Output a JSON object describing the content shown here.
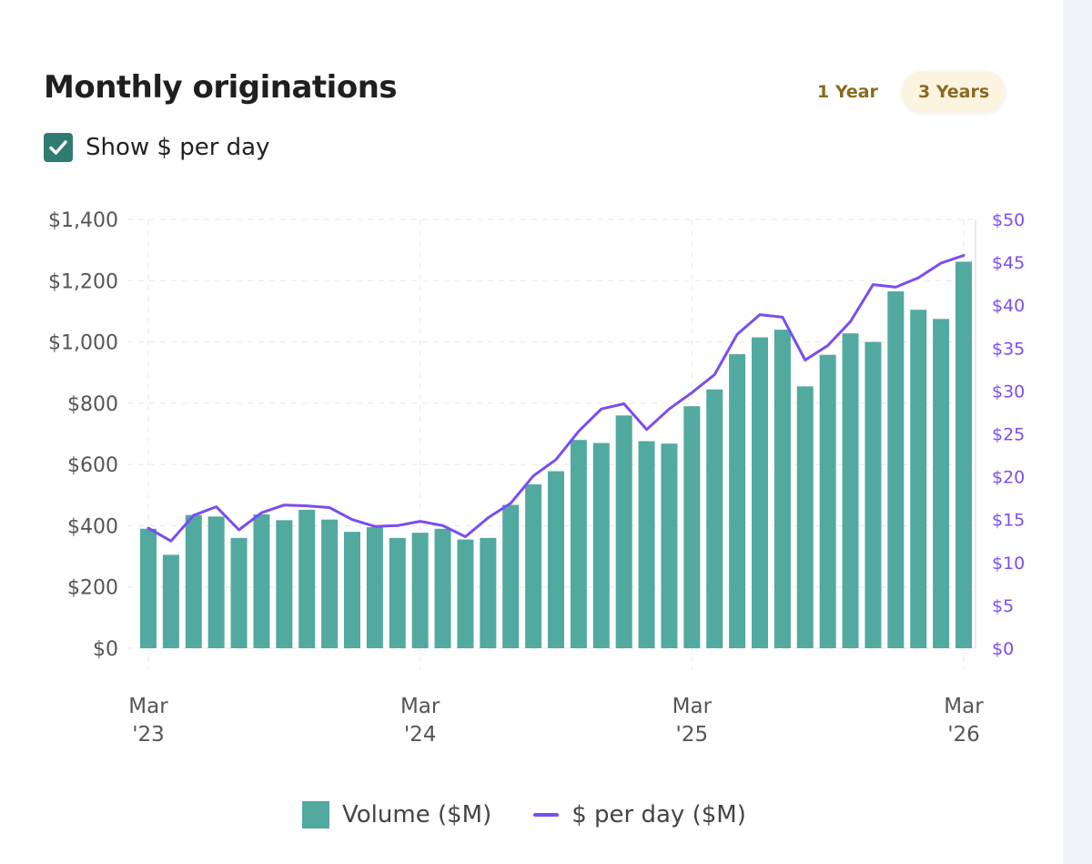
{
  "header": {
    "title": "Monthly originations",
    "ranges": [
      "1 Year",
      "3 Years"
    ],
    "active_range": "3 Years"
  },
  "toggle": {
    "label": "Show $ per day",
    "checked": true
  },
  "colors": {
    "bar": "#52a9a0",
    "line": "#7a4df0",
    "accent": "#8a6a1e",
    "checkbox": "#2f7c72"
  },
  "chart_data": {
    "type": "bar",
    "title": "Monthly originations",
    "categories": [
      "Mar '23",
      "Apr '23",
      "May '23",
      "Jun '23",
      "Jul '23",
      "Aug '23",
      "Sep '23",
      "Oct '23",
      "Nov '23",
      "Dec '23",
      "Jan '24",
      "Feb '24",
      "Mar '24",
      "Apr '24",
      "May '24",
      "Jun '24",
      "Jul '24",
      "Aug '24",
      "Sep '24",
      "Oct '24",
      "Nov '24",
      "Dec '24",
      "Jan '25",
      "Feb '25",
      "Mar '25",
      "Apr '25",
      "May '25",
      "Jun '25",
      "Jul '25",
      "Aug '25",
      "Sep '25",
      "Oct '25",
      "Nov '25",
      "Dec '25",
      "Jan '26",
      "Feb '26",
      "Mar '26"
    ],
    "series": [
      {
        "name": "Volume ($M)",
        "axis": "left",
        "type": "bar",
        "values": [
          390,
          305,
          435,
          430,
          360,
          437,
          418,
          452,
          420,
          380,
          395,
          360,
          377,
          390,
          355,
          360,
          468,
          535,
          578,
          680,
          670,
          760,
          676,
          668,
          790,
          845,
          960,
          1015,
          1040,
          855,
          958,
          1028,
          1000,
          1165,
          1105,
          1075,
          1262
        ]
      },
      {
        "name": "$ per day ($M)",
        "axis": "right",
        "type": "line",
        "values": [
          14.0,
          12.5,
          15.5,
          16.5,
          13.8,
          15.8,
          16.7,
          16.6,
          16.4,
          15.0,
          14.2,
          14.3,
          14.8,
          14.3,
          13.0,
          15.2,
          16.9,
          20.1,
          22.0,
          25.3,
          27.9,
          28.5,
          25.5,
          27.9,
          29.8,
          31.9,
          36.6,
          38.9,
          38.6,
          33.6,
          35.3,
          38.1,
          42.4,
          42.1,
          43.2,
          44.9,
          45.8
        ]
      }
    ],
    "y_left": {
      "min": 0,
      "max": 1400,
      "ticks": [
        0,
        200,
        400,
        600,
        800,
        1000,
        1200,
        1400
      ],
      "tick_labels": [
        "$0",
        "$200",
        "$400",
        "$600",
        "$800",
        "$1,000",
        "$1,200",
        "$1,400"
      ]
    },
    "y_right": {
      "min": 0,
      "max": 50,
      "ticks": [
        0,
        5,
        10,
        15,
        20,
        25,
        30,
        35,
        40,
        45,
        50
      ],
      "tick_labels": [
        "$0",
        "$5",
        "$10",
        "$15",
        "$20",
        "$25",
        "$30",
        "$35",
        "$40",
        "$45",
        "$50"
      ]
    },
    "x_ticks": [
      {
        "index": 0,
        "line1": "Mar",
        "line2": "'23"
      },
      {
        "index": 12,
        "line1": "Mar",
        "line2": "'24"
      },
      {
        "index": 24,
        "line1": "Mar",
        "line2": "'25"
      },
      {
        "index": 36,
        "line1": "Mar",
        "line2": "'26"
      }
    ],
    "legend": [
      "Volume ($M)",
      "$ per day ($M)"
    ],
    "legend_position": "bottom-center",
    "grid": true
  }
}
